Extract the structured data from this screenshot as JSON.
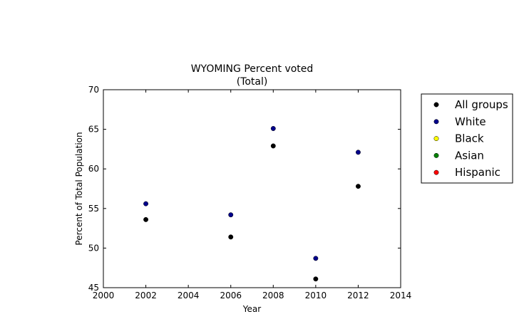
{
  "chart_data": {
    "type": "scatter",
    "title": "WYOMING Percent voted",
    "subtitle": "(Total)",
    "xlabel": "Year",
    "ylabel": "Percent of Total Population",
    "xlim": [
      2000,
      2014
    ],
    "ylim": [
      45,
      70
    ],
    "xticks": [
      2000,
      2002,
      2004,
      2006,
      2008,
      2010,
      2012,
      2014
    ],
    "yticks": [
      45,
      50,
      55,
      60,
      65,
      70
    ],
    "grid": false,
    "legend_position": "outside-right",
    "series": [
      {
        "name": "All groups",
        "color": "#000000",
        "x": [
          2002,
          2006,
          2008,
          2010,
          2012
        ],
        "y": [
          53.6,
          51.4,
          62.9,
          46.1,
          57.8
        ]
      },
      {
        "name": "White",
        "color": "#00008b",
        "x": [
          2002,
          2006,
          2008,
          2010,
          2012
        ],
        "y": [
          55.6,
          54.2,
          65.1,
          48.7,
          62.1
        ]
      },
      {
        "name": "Black",
        "color": "#ffff00",
        "x": [],
        "y": []
      },
      {
        "name": "Asian",
        "color": "#008000",
        "x": [],
        "y": []
      },
      {
        "name": "Hispanic",
        "color": "#ff0000",
        "x": [],
        "y": []
      }
    ]
  }
}
